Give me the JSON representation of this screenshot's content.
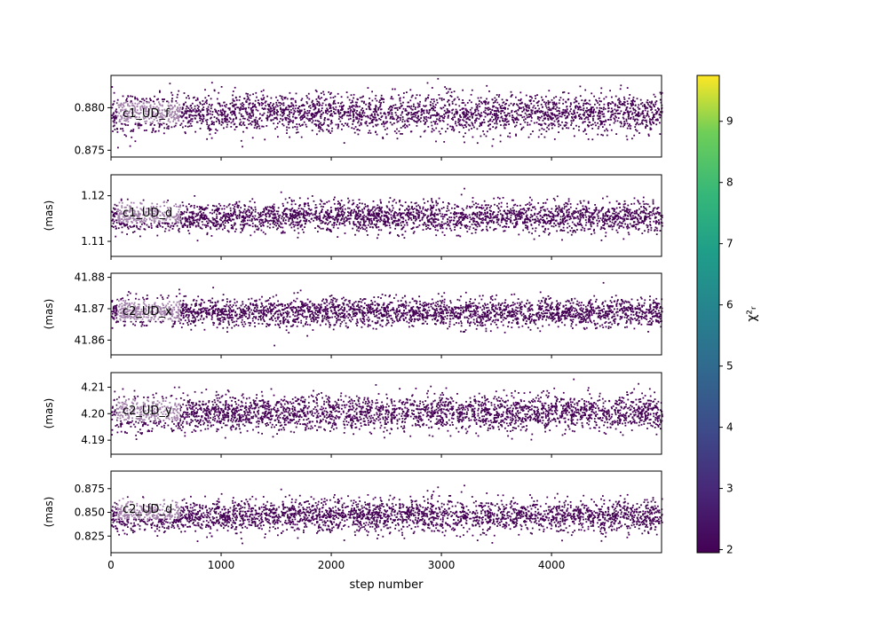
{
  "chart_data": {
    "type": "scatter",
    "shared_x": {
      "label": "step number",
      "range": [
        0,
        4999
      ],
      "ticks": [
        0,
        1000,
        2000,
        3000,
        4000
      ],
      "tick_labels": [
        "0",
        "1000",
        "2000",
        "3000",
        "4000"
      ]
    },
    "point_color": "#440154",
    "panels": [
      {
        "param": "c1_UD_f",
        "ylabel": "",
        "center": 0.8793,
        "spread": 0.00115,
        "ylim": [
          0.8742,
          0.8838
        ],
        "yticks": [
          0.875,
          0.88
        ],
        "ytick_labels": [
          "0.875",
          "0.880"
        ]
      },
      {
        "param": "c1_UD_d",
        "ylabel": "(mas)",
        "center": 1.1153,
        "spread": 0.00165,
        "ylim": [
          1.1067,
          1.1246
        ],
        "yticks": [
          1.11,
          1.12
        ],
        "ytick_labels": [
          "1.11",
          "1.12"
        ]
      },
      {
        "param": "c2_UD_x",
        "ylabel": "(mas)",
        "center": 41.8688,
        "spread": 0.0022,
        "ylim": [
          41.8553,
          41.8813
        ],
        "yticks": [
          41.86,
          41.87,
          41.88
        ],
        "ytick_labels": [
          "41.86",
          "41.87",
          "41.88"
        ]
      },
      {
        "param": "c2_UD_y",
        "ylabel": "(mas)",
        "center": 4.2003,
        "spread": 0.0033,
        "ylim": [
          4.1847,
          4.2155
        ],
        "yticks": [
          4.19,
          4.2,
          4.21
        ],
        "ytick_labels": [
          "4.19",
          "4.20",
          "4.21"
        ]
      },
      {
        "param": "c2_UD_d",
        "ylabel": "(mas)",
        "center": 0.846,
        "spread": 0.0085,
        "ylim": [
          0.8075,
          0.8935
        ],
        "yticks": [
          0.825,
          0.85,
          0.875
        ],
        "ytick_labels": [
          "0.825",
          "0.850",
          "0.875"
        ]
      }
    ],
    "colorbar": {
      "label": "χ²ᵣ",
      "colormap": "viridis",
      "range": [
        1.95,
        9.75
      ],
      "ticks": [
        2,
        3,
        4,
        5,
        6,
        7,
        8,
        9
      ],
      "tick_labels": [
        "2",
        "3",
        "4",
        "5",
        "6",
        "7",
        "8",
        "9"
      ]
    },
    "grid": false
  }
}
